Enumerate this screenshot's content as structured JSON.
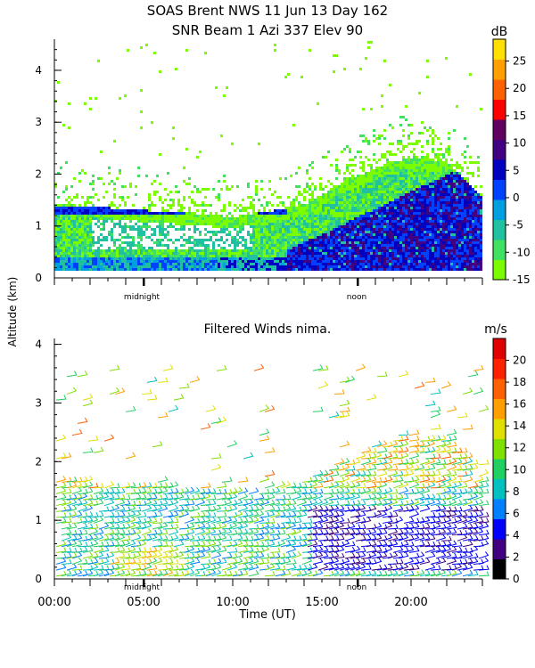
{
  "figure": {
    "title_line1": "SOAS Brent NWS  11 Jun 13 Day 162",
    "title_line2": "SNR Beam 1 Azi 337 Elev 90",
    "shared_ylabel": "Altitude (km)",
    "shared_xlabel": "Time (UT)",
    "midnight_label": "midnight",
    "noon_label": "noon"
  },
  "colors": {
    "snr_scale": [
      "#7cfc00",
      "#40e060",
      "#20c0a0",
      "#00a0e0",
      "#0040ff",
      "#0000c0",
      "#400080",
      "#600060",
      "#ff0000",
      "#ff6000",
      "#ffa000",
      "#ffe000"
    ],
    "wind_scale": [
      "#000000",
      "#400080",
      "#0000ff",
      "#0080ff",
      "#00c0c0",
      "#20d060",
      "#80e000",
      "#e0e000",
      "#ffa000",
      "#ff6000",
      "#ff2000",
      "#e00000"
    ]
  },
  "chart_data": [
    {
      "type": "heatmap",
      "title": "SNR Beam 1 Azi 337 Elev 90",
      "xlabel": "",
      "ylabel": "Altitude (km)",
      "xlim": [
        0,
        24
      ],
      "ylim": [
        0,
        4.6
      ],
      "yticks": [
        "0",
        "1",
        "2",
        "3",
        "4"
      ],
      "colorbar": {
        "unit": "dB",
        "ticks": [
          "-15",
          "-10",
          "-5",
          "0",
          "5",
          "10",
          "15",
          "20",
          "25"
        ],
        "range": [
          -15,
          29
        ]
      },
      "features": {
        "mixed_layer_top_km_by_hour": [
          [
            0,
            1.4
          ],
          [
            2,
            1.35
          ],
          [
            4,
            1.3
          ],
          [
            6,
            1.25
          ],
          [
            8,
            1.2
          ],
          [
            10,
            1.15
          ],
          [
            12,
            1.25
          ],
          [
            14,
            1.4
          ],
          [
            16,
            1.8
          ],
          [
            18,
            2.1
          ],
          [
            20,
            2.3
          ],
          [
            22,
            2.2
          ],
          [
            24,
            1.5
          ]
        ],
        "strong_echo_region": {
          "x_range_h": [
            13,
            24
          ],
          "top_km": 2.0,
          "value_db": 8
        },
        "elevated_layer_km": 1.25
      }
    },
    {
      "type": "scatter",
      "title": "Filtered Winds nima.",
      "xlabel": "Time (UT)",
      "ylabel": "Altitude (km)",
      "xlim": [
        0,
        24
      ],
      "ylim": [
        0,
        4.1
      ],
      "xticks": [
        "00:00",
        "05:00",
        "10:00",
        "15:00",
        "20:00"
      ],
      "yticks": [
        "0",
        "1",
        "2",
        "3",
        "4"
      ],
      "colorbar": {
        "unit": "m/s",
        "ticks": [
          "0",
          "2",
          "4",
          "6",
          "8",
          "10",
          "12",
          "14",
          "16",
          "18",
          "20"
        ],
        "range": [
          0,
          22
        ]
      },
      "features": {
        "wind_barbs": "dense wind barbs below 2 km throughout the day, sparse above",
        "typical_speed_low_level_m_s": 8,
        "weak_wind_region": {
          "x_range_h": [
            14,
            24
          ],
          "y_range_km": [
            0.1,
            1.2
          ],
          "speed_m_s": 4
        }
      }
    }
  ]
}
